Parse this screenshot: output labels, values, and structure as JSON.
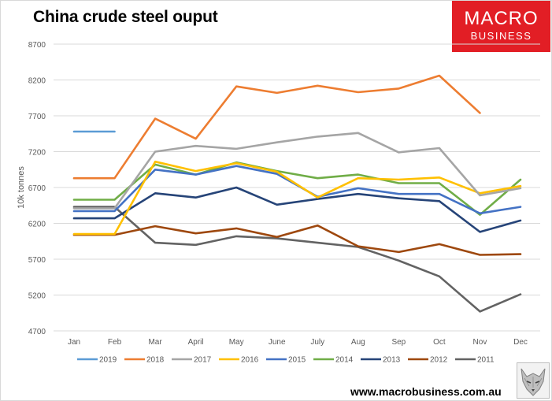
{
  "header": {
    "title": "China crude steel ouput"
  },
  "brand": {
    "logo_line1": "MACRO",
    "logo_line2": "BUSINESS",
    "logo_color": "#e21e25",
    "url": "www.macrobusiness.com.au",
    "mascot_icon": "wolf-icon"
  },
  "chart_data": {
    "type": "line",
    "title": "China crude steel ouput",
    "xlabel": "",
    "ylabel": "10k tonnes",
    "categories": [
      "Jan",
      "Feb",
      "Mar",
      "April",
      "May",
      "June",
      "July",
      "Aug",
      "Sep",
      "Oct",
      "Nov",
      "Dec"
    ],
    "ylim": [
      4700,
      8700
    ],
    "yticks": [
      4700,
      5200,
      5700,
      6200,
      6700,
      7200,
      7700,
      8200,
      8700
    ],
    "grid": true,
    "legend": "bottom",
    "series": [
      {
        "name": "2019",
        "color": "#5b9bd5",
        "values": [
          7480,
          7480,
          null,
          null,
          null,
          null,
          null,
          null,
          null,
          null,
          null,
          null
        ]
      },
      {
        "name": "2018",
        "color": "#ed7d31",
        "values": [
          6830,
          6830,
          7660,
          7380,
          8110,
          8020,
          8120,
          8030,
          8080,
          8260,
          7740,
          null
        ]
      },
      {
        "name": "2017",
        "color": "#a5a5a5",
        "values": [
          6410,
          6410,
          7200,
          7280,
          7240,
          7330,
          7410,
          7460,
          7190,
          7250,
          6590,
          6690
        ]
      },
      {
        "name": "2016",
        "color": "#ffc000",
        "values": [
          6050,
          6050,
          7060,
          6930,
          7040,
          6920,
          6560,
          6830,
          6810,
          6840,
          6620,
          6720
        ]
      },
      {
        "name": "2015",
        "color": "#4472c4",
        "values": [
          6370,
          6370,
          6950,
          6880,
          7000,
          6890,
          6570,
          6690,
          6610,
          6610,
          6340,
          6430
        ]
      },
      {
        "name": "2014",
        "color": "#70ad47",
        "values": [
          6530,
          6530,
          7020,
          6880,
          7050,
          6930,
          6830,
          6880,
          6760,
          6760,
          6320,
          6810
        ]
      },
      {
        "name": "2013",
        "color": "#264478",
        "values": [
          6270,
          6270,
          6620,
          6560,
          6700,
          6460,
          6540,
          6610,
          6550,
          6510,
          6080,
          6240
        ]
      },
      {
        "name": "2012",
        "color": "#9e480e",
        "values": [
          6040,
          6040,
          6160,
          6060,
          6130,
          6010,
          6170,
          5880,
          5800,
          5910,
          5760,
          5770
        ]
      },
      {
        "name": "2011",
        "color": "#636363",
        "values": [
          6430,
          6430,
          5930,
          5900,
          6020,
          5990,
          5930,
          5870,
          5680,
          5460,
          4970,
          5210
        ]
      }
    ]
  }
}
